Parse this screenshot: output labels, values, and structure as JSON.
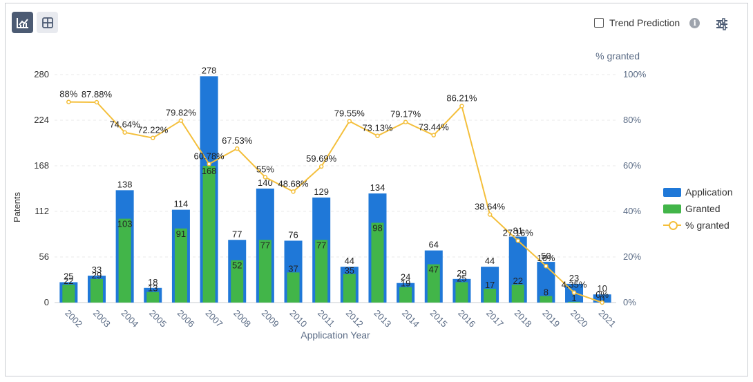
{
  "toolbar": {
    "chart_view_icon": "chart-icon",
    "table_view_icon": "grid-icon",
    "trend_prediction_label": "Trend Prediction",
    "info_icon": "i"
  },
  "legend": {
    "application": "Application",
    "granted": "Granted",
    "pct_granted": "% granted"
  },
  "colors": {
    "application": "#1f78d8",
    "granted": "#42b549",
    "pct_line": "#f4bf3b",
    "axis_text": "#333333",
    "grid": "#e8e8e8"
  },
  "chart_data": {
    "type": "bar",
    "categories": [
      "2002",
      "2003",
      "2004",
      "2005",
      "2006",
      "2007",
      "2008",
      "2009",
      "2010",
      "2011",
      "2012",
      "2013",
      "2014",
      "2015",
      "2016",
      "2017",
      "2018",
      "2019",
      "2020",
      "2021"
    ],
    "series": [
      {
        "name": "Application",
        "type": "bar",
        "axis": "left",
        "values": [
          25,
          33,
          138,
          18,
          114,
          278,
          77,
          140,
          76,
          129,
          44,
          134,
          24,
          64,
          29,
          44,
          81,
          50,
          23,
          10
        ]
      },
      {
        "name": "Granted",
        "type": "bar",
        "axis": "left",
        "values": [
          22,
          29,
          103,
          13,
          91,
          168,
          52,
          77,
          37,
          77,
          35,
          98,
          19,
          47,
          25,
          17,
          22,
          8,
          1,
          0
        ]
      },
      {
        "name": "% granted",
        "type": "line",
        "axis": "right",
        "values": [
          88,
          87.88,
          74.64,
          72.22,
          79.82,
          60.78,
          67.53,
          55,
          48.68,
          59.69,
          79.55,
          73.13,
          79.17,
          73.44,
          86.21,
          38.64,
          27.16,
          16,
          4.35,
          0
        ]
      }
    ],
    "pct_labels": [
      "88%",
      "87.88%",
      "74.64%",
      "72.22%",
      "79.82%",
      "60.78%",
      "67.53%",
      "55%",
      "48.68%",
      "59.69%",
      "79.55%",
      "73.13%",
      "79.17%",
      "73.44%",
      "86.21%",
      "38.64%",
      "27.16%",
      "16%",
      "4.35%",
      "0%"
    ],
    "granted_labels": [
      "22",
      "29",
      "103",
      "13",
      "91",
      "168",
      "52",
      "77",
      "37",
      "77",
      "35",
      "98",
      "19",
      "47",
      "25",
      "17",
      "22",
      "8",
      "1",
      "0"
    ],
    "xlabel": "Application Year",
    "ylabel": "Patents",
    "y2label": "% granted",
    "ylim": [
      0,
      280
    ],
    "yticks": [
      "0",
      "56",
      "112",
      "168",
      "224",
      "280"
    ],
    "y2lim": [
      0,
      100
    ],
    "y2ticks": [
      "0%",
      "20%",
      "40%",
      "60%",
      "80%",
      "100%"
    ],
    "grid": true,
    "legend_position": "right"
  }
}
